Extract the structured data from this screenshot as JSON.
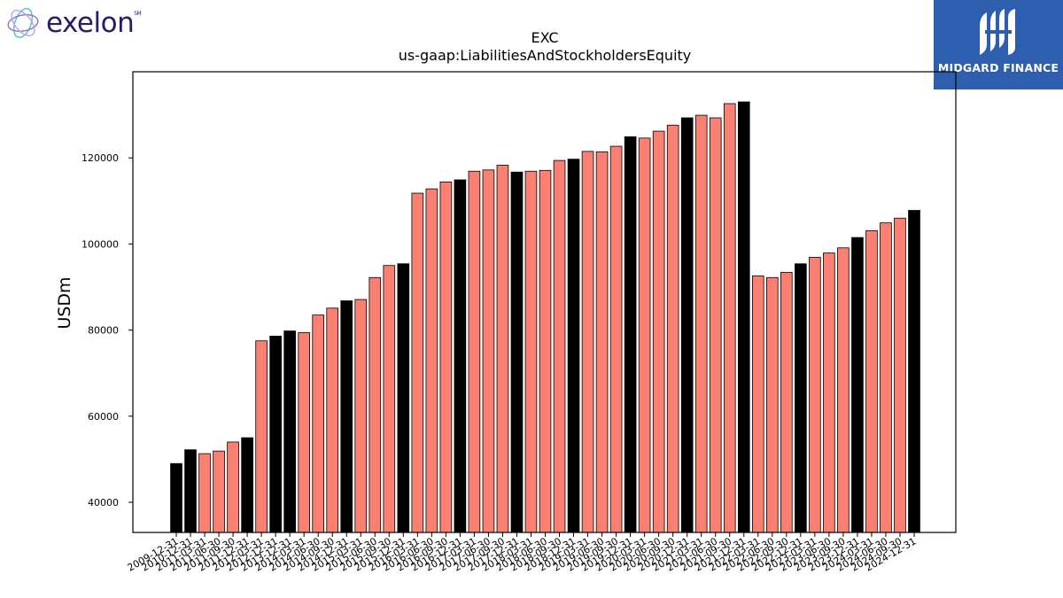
{
  "header": {
    "left_logo_text": "exelon",
    "left_logo_mark": "SM",
    "right_logo_text": "MIDGARD FINANCE"
  },
  "chart_data": {
    "type": "bar",
    "title": "EXC",
    "subtitle": "us-gaap:LiabilitiesAndStockholdersEquity",
    "xlabel": "",
    "ylabel": "USDm",
    "ylim": [
      33000,
      140000
    ],
    "yticks": [
      40000,
      60000,
      80000,
      100000,
      120000
    ],
    "grid": false,
    "colors": {
      "annual": "#000000",
      "quarter": "#fa8072",
      "edge": "#000000"
    },
    "categories": [
      "2009-12-31",
      "2010-12-31",
      "2011-03-31",
      "2011-06-30",
      "2011-09-30",
      "2011-12-31",
      "2012-03-31",
      "2012-12-31",
      "2013-12-31",
      "2014-03-31",
      "2014-06-30",
      "2014-09-30",
      "2014-12-31",
      "2015-03-31",
      "2015-06-30",
      "2015-09-30",
      "2015-12-31",
      "2016-03-31",
      "2016-06-30",
      "2016-09-30",
      "2016-12-31",
      "2017-03-31",
      "2017-06-30",
      "2017-09-30",
      "2017-12-31",
      "2018-03-31",
      "2018-06-30",
      "2018-09-30",
      "2018-12-31",
      "2019-03-31",
      "2019-06-30",
      "2019-09-30",
      "2019-12-31",
      "2020-03-31",
      "2020-06-30",
      "2020-09-30",
      "2020-12-31",
      "2021-03-31",
      "2021-06-30",
      "2021-09-30",
      "2021-12-31",
      "2022-03-31",
      "2022-06-30",
      "2022-09-30",
      "2022-12-31",
      "2023-03-31",
      "2023-06-30",
      "2023-09-30",
      "2023-12-31",
      "2024-03-31",
      "2024-06-30",
      "2024-09-30",
      "2024-12-31"
    ],
    "values": [
      49000,
      52200,
      51300,
      51900,
      54000,
      55000,
      77500,
      78600,
      79800,
      79400,
      83500,
      85100,
      86800,
      87100,
      92200,
      95000,
      95400,
      111800,
      112800,
      114400,
      114900,
      116900,
      117200,
      118300,
      116700,
      116900,
      117100,
      119400,
      119700,
      121500,
      121400,
      122700,
      124900,
      124600,
      126200,
      127600,
      129300,
      129900,
      129300,
      132600,
      133000,
      92600,
      92200,
      93400,
      95400,
      96900,
      97900,
      99100,
      101500,
      103100,
      104900,
      106000,
      107800
    ],
    "annual_flags": [
      1,
      1,
      0,
      0,
      0,
      1,
      0,
      1,
      1,
      0,
      0,
      0,
      1,
      0,
      0,
      0,
      1,
      0,
      0,
      0,
      1,
      0,
      0,
      0,
      1,
      0,
      0,
      0,
      1,
      0,
      0,
      0,
      1,
      0,
      0,
      0,
      1,
      0,
      0,
      0,
      1,
      0,
      0,
      0,
      1,
      0,
      0,
      0,
      1,
      0,
      0,
      0,
      1
    ]
  }
}
